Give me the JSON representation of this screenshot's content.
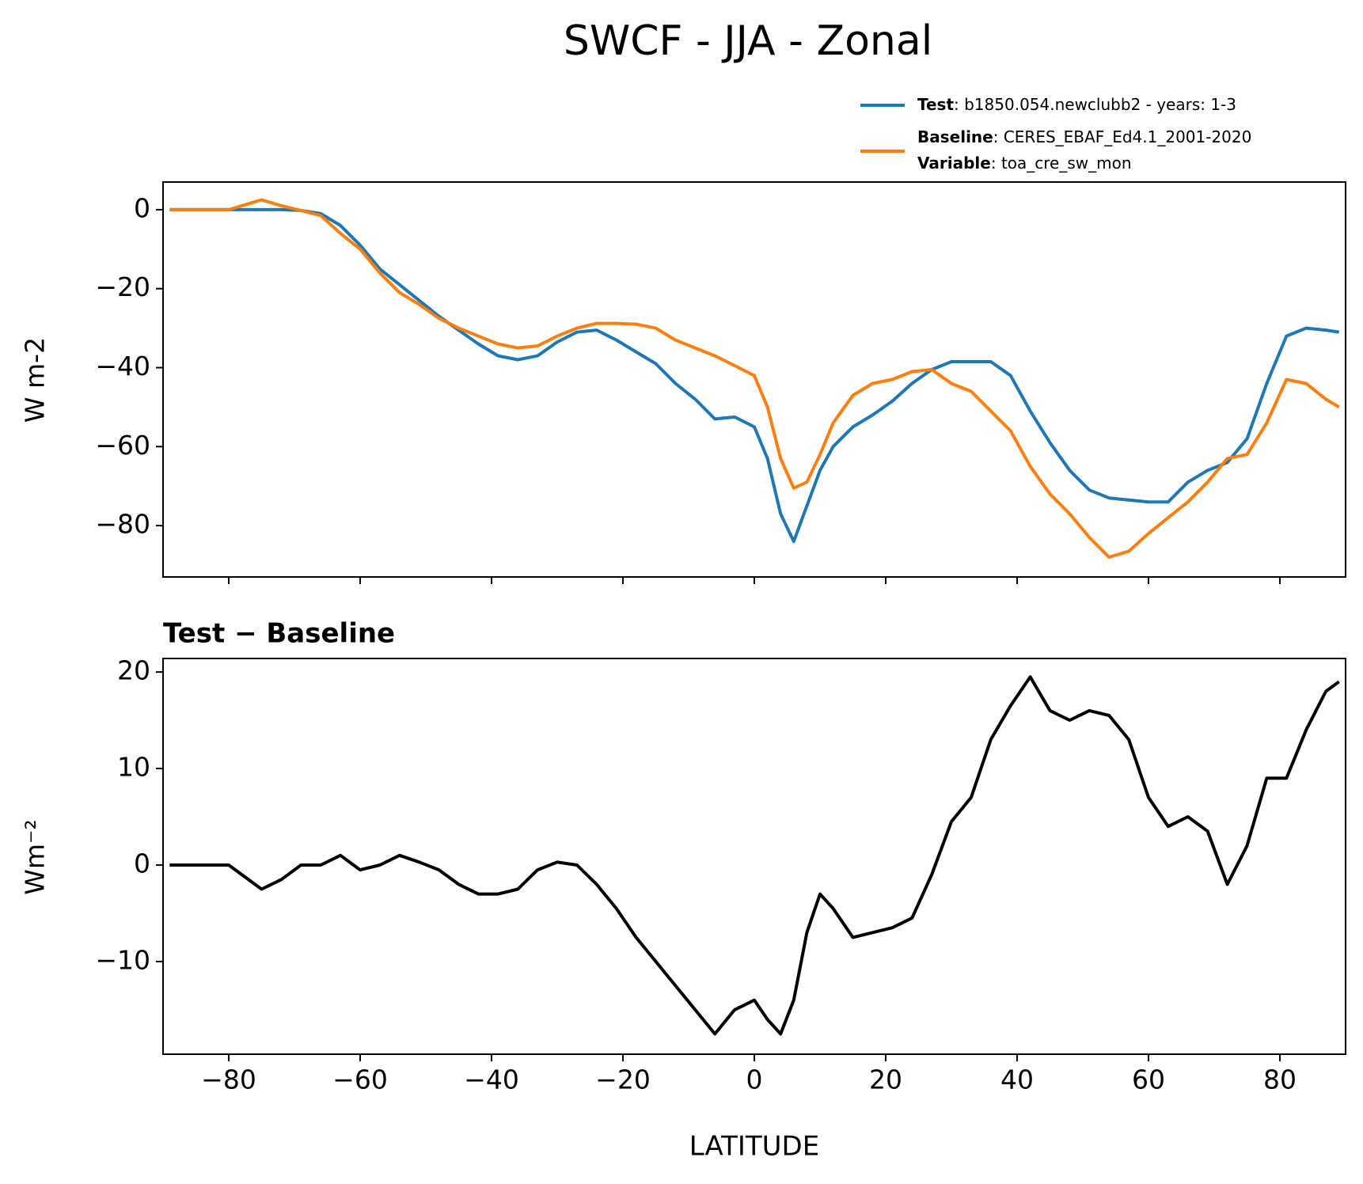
{
  "title": "SWCF - JJA - Zonal",
  "legend_extra": {
    "name": "Variable",
    "text": ": toa_cre_sw_mon"
  },
  "chart_data": [
    {
      "type": "line",
      "ylabel": "W m-2",
      "x": [
        -89,
        -85,
        -80,
        -75,
        -72,
        -69,
        -66,
        -63,
        -60,
        -57,
        -54,
        -51,
        -48,
        -45,
        -42,
        -39,
        -36,
        -33,
        -30,
        -27,
        -24,
        -21,
        -18,
        -15,
        -12,
        -9,
        -6,
        -3,
        0,
        2,
        4,
        6,
        8,
        10,
        12,
        15,
        18,
        21,
        24,
        27,
        30,
        33,
        36,
        39,
        42,
        45,
        48,
        51,
        54,
        57,
        60,
        63,
        66,
        69,
        72,
        75,
        78,
        81,
        84,
        87,
        89
      ],
      "xlim": [
        -90,
        90
      ],
      "xticks": [
        -80,
        -60,
        -40,
        -20,
        0,
        20,
        40,
        60,
        80
      ],
      "xtick_labels": false,
      "ylim": [
        -93,
        7
      ],
      "yticks": [
        {
          "value": 0,
          "label": "0"
        },
        {
          "value": -20,
          "label": "−20"
        },
        {
          "value": -40,
          "label": "−40"
        },
        {
          "value": -60,
          "label": "−60"
        },
        {
          "value": -80,
          "label": "−80"
        }
      ],
      "series": [
        {
          "name": "Test",
          "description": ": b1850.054.newclubb2 - years: 1-3",
          "color": "#1f77b4",
          "values": [
            0,
            0,
            0,
            0,
            0,
            -0.2,
            -1,
            -4,
            -9,
            -15,
            -19,
            -23,
            -27,
            -30.5,
            -34,
            -37,
            -38,
            -37,
            -33.5,
            -31,
            -30.5,
            -33,
            -36,
            -39,
            -44,
            -48,
            -53,
            -52.5,
            -55,
            -63,
            -77,
            -84,
            -75,
            -66,
            -60,
            -55,
            -52,
            -48.5,
            -44,
            -40.5,
            -38.5,
            -38.5,
            -38.5,
            -42,
            -51,
            -59,
            -66,
            -71,
            -73,
            -73.5,
            -74,
            -74,
            -69,
            -66,
            -64,
            -58,
            -44,
            -32,
            -30,
            -30.5,
            -31
          ]
        },
        {
          "name": "Baseline",
          "description": ": CERES_EBAF_Ed4.1_2001-2020",
          "color": "#ff7f0e",
          "values": [
            0,
            0,
            0,
            2.5,
            1,
            -0.2,
            -1.5,
            -6,
            -10,
            -16,
            -21,
            -24,
            -27.5,
            -30,
            -32,
            -34,
            -35,
            -34.5,
            -32,
            -30,
            -28.8,
            -28.8,
            -29,
            -30,
            -33,
            -35,
            -37,
            -39.5,
            -42,
            -50,
            -63,
            -70.5,
            -69,
            -62,
            -54,
            -47,
            -44,
            -43,
            -41,
            -40.5,
            -44,
            -46,
            -51,
            -56,
            -65,
            -72,
            -77,
            -83,
            -88,
            -86.5,
            -82,
            -78,
            -74,
            -69,
            -63,
            -62,
            -54,
            -43,
            -44,
            -48,
            -50
          ]
        }
      ]
    },
    {
      "type": "line",
      "title": "Test − Baseline",
      "ylabel": "Wm⁻²",
      "xlabel": "LATITUDE",
      "x": [
        -89,
        -85,
        -80,
        -75,
        -72,
        -69,
        -66,
        -63,
        -60,
        -57,
        -54,
        -51,
        -48,
        -45,
        -42,
        -39,
        -36,
        -33,
        -30,
        -27,
        -24,
        -21,
        -18,
        -15,
        -12,
        -9,
        -6,
        -3,
        0,
        2,
        4,
        6,
        8,
        10,
        12,
        15,
        18,
        21,
        24,
        27,
        30,
        33,
        36,
        39,
        42,
        45,
        48,
        51,
        54,
        57,
        60,
        63,
        66,
        69,
        72,
        75,
        78,
        81,
        84,
        87,
        89
      ],
      "xlim": [
        -90,
        90
      ],
      "xticks": [
        {
          "value": -80,
          "label": "−80"
        },
        {
          "value": -60,
          "label": "−60"
        },
        {
          "value": -40,
          "label": "−40"
        },
        {
          "value": -20,
          "label": "−20"
        },
        {
          "value": 0,
          "label": "0"
        },
        {
          "value": 20,
          "label": "20"
        },
        {
          "value": 40,
          "label": "40"
        },
        {
          "value": 60,
          "label": "60"
        },
        {
          "value": 80,
          "label": "80"
        }
      ],
      "ylim": [
        -19.6,
        21.4
      ],
      "yticks": [
        {
          "value": 20,
          "label": "20"
        },
        {
          "value": 10,
          "label": "10"
        },
        {
          "value": 0,
          "label": "0"
        },
        {
          "value": -10,
          "label": "−10"
        }
      ],
      "series": [
        {
          "name": "Test − Baseline",
          "color": "#000000",
          "values": [
            0,
            0,
            0,
            -2.5,
            -1.5,
            0,
            0,
            1,
            -0.5,
            0,
            1,
            0.3,
            -0.5,
            -2,
            -3,
            -3,
            -2.5,
            -0.5,
            0.3,
            0,
            -2,
            -4.5,
            -7.5,
            -10,
            -12.5,
            -15,
            -17.5,
            -15,
            -14,
            -16,
            -17.5,
            -14,
            -7,
            -3,
            -4.5,
            -7.5,
            -7,
            -6.5,
            -5.5,
            -1,
            4.5,
            7,
            13,
            16.5,
            19.5,
            16,
            15,
            16,
            15.5,
            13,
            7,
            4,
            5,
            3.5,
            -2,
            2,
            9,
            9,
            14,
            18,
            19
          ]
        }
      ]
    }
  ]
}
